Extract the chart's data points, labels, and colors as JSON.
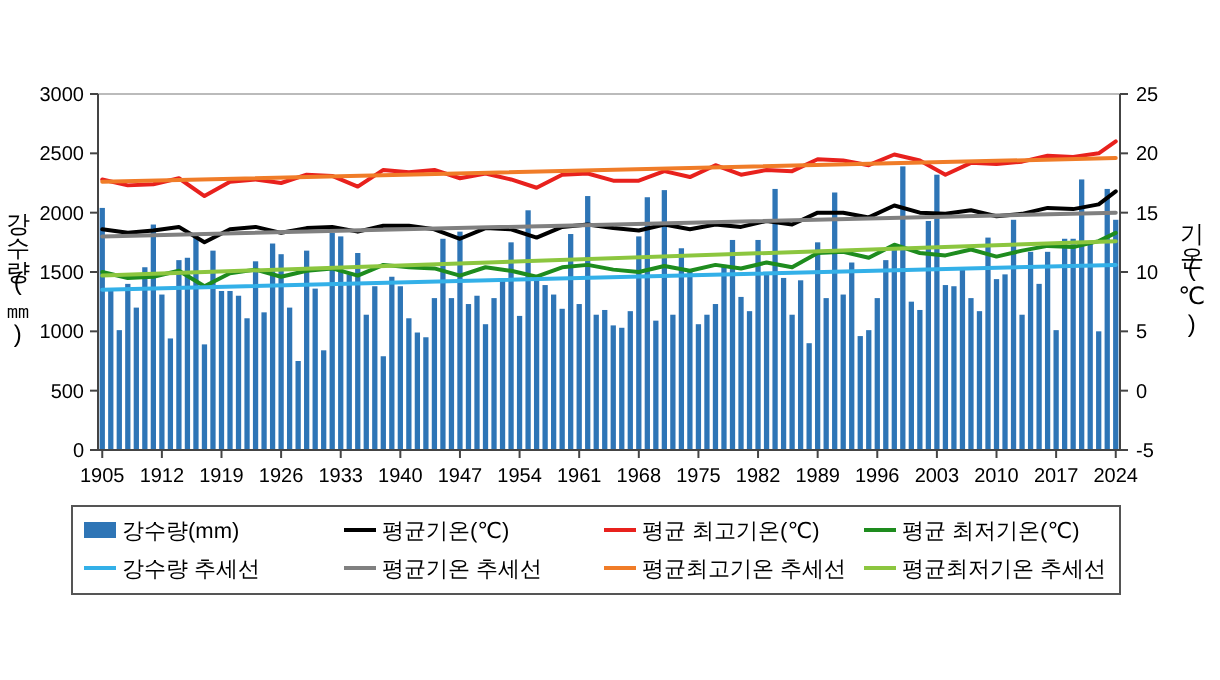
{
  "chart_data": {
    "type": "bar",
    "xlabel": null,
    "ylabel": "강수량(㎜)",
    "y2label": "기온(℃)",
    "x": [
      1905,
      1906,
      1907,
      1908,
      1909,
      1910,
      1911,
      1912,
      1913,
      1914,
      1915,
      1916,
      1917,
      1918,
      1919,
      1920,
      1921,
      1922,
      1923,
      1924,
      1925,
      1926,
      1927,
      1928,
      1929,
      1930,
      1931,
      1932,
      1933,
      1934,
      1935,
      1936,
      1937,
      1938,
      1939,
      1940,
      1941,
      1942,
      1943,
      1944,
      1945,
      1946,
      1947,
      1948,
      1949,
      1950,
      1951,
      1952,
      1953,
      1954,
      1955,
      1956,
      1957,
      1958,
      1959,
      1960,
      1961,
      1962,
      1963,
      1964,
      1965,
      1966,
      1967,
      1968,
      1969,
      1970,
      1971,
      1972,
      1973,
      1974,
      1975,
      1976,
      1977,
      1978,
      1979,
      1980,
      1981,
      1982,
      1983,
      1984,
      1985,
      1986,
      1987,
      1988,
      1989,
      1990,
      1991,
      1992,
      1993,
      1994,
      1995,
      1996,
      1997,
      1998,
      1999,
      2000,
      2001,
      2002,
      2003,
      2004,
      2005,
      2006,
      2007,
      2008,
      2009,
      2010,
      2011,
      2012,
      2013,
      2014,
      2015,
      2016,
      2017,
      2018,
      2019,
      2020,
      2021,
      2022,
      2023,
      2024
    ],
    "series": [
      {
        "name": "강수량(mm)",
        "color": "#2e75b6",
        "values": [
          2040,
          1350,
          1010,
          1400,
          1200,
          1540,
          1900,
          1310,
          940,
          1600,
          1620,
          1800,
          890,
          1680,
          1340,
          1340,
          1300,
          1110,
          1590,
          1160,
          1740,
          1650,
          1200,
          750,
          1680,
          1360,
          840,
          1830,
          1800,
          1480,
          1660,
          1140,
          1380,
          790,
          1460,
          1380,
          1110,
          990,
          950,
          1280,
          1780,
          1280,
          1840,
          1230,
          1300,
          1060,
          1280,
          1440,
          1750,
          1130,
          2020,
          1470,
          1390,
          1310,
          1190,
          1820,
          1230,
          2140,
          1140,
          1180,
          1050,
          1030,
          1170,
          1800,
          2130,
          1090,
          2190,
          1140,
          1700,
          1520,
          1060,
          1140,
          1230,
          1560,
          1770,
          1290,
          1170,
          1770,
          1490,
          2200,
          1450,
          1140,
          1430,
          900,
          1750,
          1280,
          2170,
          1310,
          1580,
          960,
          1010,
          1280,
          1600,
          1730,
          2390,
          1250,
          1180,
          1930,
          2320,
          1390,
          1380,
          1520,
          1280,
          1170,
          1790,
          1440,
          1480,
          1940,
          1140,
          1670,
          1400,
          1670,
          1010,
          1780,
          1780,
          2280,
          1760,
          1000,
          2200,
          1940
        ]
      },
      {
        "name": "평균기온(℃)",
        "type": "line",
        "axis": "y2",
        "color": "#000000",
        "x": [
          1905,
          1908,
          1911,
          1914,
          1917,
          1920,
          1923,
          1926,
          1929,
          1932,
          1935,
          1938,
          1941,
          1944,
          1947,
          1950,
          1953,
          1956,
          1959,
          1962,
          1965,
          1968,
          1971,
          1974,
          1977,
          1980,
          1983,
          1986,
          1989,
          1992,
          1995,
          1998,
          2001,
          2004,
          2007,
          2010,
          2013,
          2016,
          2019,
          2022,
          2024
        ],
        "values": [
          13.6,
          13.3,
          13.5,
          13.8,
          12.5,
          13.6,
          13.8,
          13.3,
          13.7,
          13.8,
          13.4,
          13.9,
          13.9,
          13.6,
          12.8,
          13.7,
          13.6,
          12.9,
          13.8,
          14.0,
          13.7,
          13.5,
          14.0,
          13.6,
          14.0,
          13.8,
          14.3,
          14.0,
          15.0,
          15.0,
          14.6,
          15.6,
          15.0,
          14.9,
          15.2,
          14.7,
          14.9,
          15.4,
          15.3,
          15.7,
          16.8
        ]
      },
      {
        "name": "평균 최고기온(℃)",
        "type": "line",
        "axis": "y2",
        "color": "#e8211d",
        "x": [
          1905,
          1908,
          1911,
          1914,
          1917,
          1920,
          1923,
          1926,
          1929,
          1932,
          1935,
          1938,
          1941,
          1944,
          1947,
          1950,
          1953,
          1956,
          1959,
          1962,
          1965,
          1968,
          1971,
          1974,
          1977,
          1980,
          1983,
          1986,
          1989,
          1992,
          1995,
          1998,
          2001,
          2004,
          2007,
          2010,
          2013,
          2016,
          2019,
          2022,
          2024
        ],
        "values": [
          17.8,
          17.3,
          17.4,
          17.9,
          16.4,
          17.6,
          17.8,
          17.5,
          18.2,
          18.1,
          17.2,
          18.6,
          18.4,
          18.6,
          17.9,
          18.3,
          17.8,
          17.1,
          18.2,
          18.3,
          17.7,
          17.7,
          18.5,
          18.0,
          19.0,
          18.2,
          18.6,
          18.5,
          19.5,
          19.4,
          19.0,
          19.9,
          19.4,
          18.2,
          19.2,
          19.1,
          19.3,
          19.8,
          19.7,
          20.0,
          21.0
        ]
      },
      {
        "name": "평균 최저기온(℃)",
        "type": "line",
        "axis": "y2",
        "color": "#1e8c1e",
        "x": [
          1905,
          1908,
          1911,
          1914,
          1917,
          1920,
          1923,
          1926,
          1929,
          1932,
          1935,
          1938,
          1941,
          1944,
          1947,
          1950,
          1953,
          1956,
          1959,
          1962,
          1965,
          1968,
          1971,
          1974,
          1977,
          1980,
          1983,
          1986,
          1989,
          1992,
          1995,
          1998,
          2001,
          2004,
          2007,
          2010,
          2013,
          2016,
          2019,
          2022,
          2024
        ],
        "values": [
          10.0,
          9.5,
          9.6,
          10.1,
          8.8,
          9.9,
          10.2,
          9.6,
          10.1,
          10.3,
          9.7,
          10.6,
          10.4,
          10.3,
          9.7,
          10.4,
          10.1,
          9.6,
          10.4,
          10.6,
          10.2,
          10.0,
          10.5,
          10.1,
          10.6,
          10.3,
          10.8,
          10.4,
          11.6,
          11.7,
          11.2,
          12.3,
          11.6,
          11.4,
          11.9,
          11.3,
          11.8,
          12.2,
          12.1,
          12.6,
          13.3
        ]
      },
      {
        "name": "강수량 추세선",
        "type": "line",
        "color": "#33b0e8",
        "x": [
          1905,
          2024
        ],
        "values": [
          1350,
          1560
        ]
      },
      {
        "name": "평균기온 추세선",
        "type": "line",
        "axis": "y2",
        "color": "#808080",
        "x": [
          1905,
          2024
        ],
        "values": [
          13.0,
          15.0
        ]
      },
      {
        "name": "평균최고기온 추세선",
        "type": "line",
        "axis": "y2",
        "color": "#f07c28",
        "x": [
          1905,
          2024
        ],
        "values": [
          17.6,
          19.6
        ]
      },
      {
        "name": "평균최저기온 추세선",
        "type": "line",
        "axis": "y2",
        "color": "#8cc63f",
        "x": [
          1905,
          2024
        ],
        "values": [
          9.7,
          12.6
        ]
      }
    ],
    "xlim": [
      1904.5,
      2024.5
    ],
    "xticks": [
      1905,
      1912,
      1919,
      1926,
      1933,
      1940,
      1947,
      1954,
      1961,
      1968,
      1975,
      1982,
      1989,
      1996,
      2003,
      2010,
      2017,
      2024
    ],
    "ylim": [
      0,
      3000
    ],
    "yticks": [
      0,
      500,
      1000,
      1500,
      2000,
      2500,
      3000
    ],
    "y2lim": [
      -5,
      25
    ],
    "y2ticks": [
      -5,
      0,
      5,
      10,
      15,
      20,
      25
    ],
    "legend": "bottom"
  }
}
